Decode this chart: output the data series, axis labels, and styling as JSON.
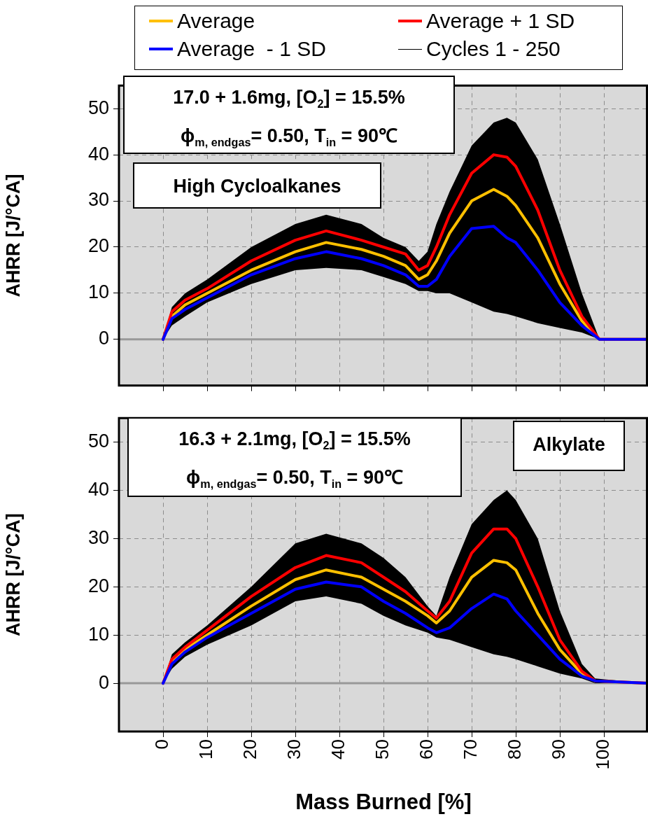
{
  "chart_data": [
    {
      "type": "line",
      "ylabel": "AHRR [J/°CA]",
      "legend": "top",
      "grid": true,
      "tick_labels": "y",
      "marker": "none",
      "line_style": "solid",
      "annotations": [
        "17.0 + 1.6mg, [O$_{2}$] = 15.5%",
        "ϕ$_{m, endgas}$= 0.50, T$_{in}$ = 90℃",
        "High Cycloalkanes"
      ],
      "x": [
        0,
        2,
        5,
        10,
        20,
        30,
        37,
        45,
        50,
        55,
        58,
        60,
        62,
        65,
        70,
        75,
        78,
        80,
        85,
        90,
        95,
        99,
        110
      ],
      "xlim": [
        -10,
        110
      ],
      "xticks": [
        0,
        10,
        20,
        30,
        40,
        50,
        60,
        70,
        80,
        90,
        100
      ],
      "ylim": [
        -10,
        55
      ],
      "yticks": [
        0,
        10,
        20,
        30,
        40,
        50
      ],
      "ref_lines": [
        {
          "axis": "y",
          "value": 0,
          "color": "#999999"
        }
      ],
      "series": [
        {
          "name": "Average",
          "color": "#ffc000",
          "values": [
            0,
            5,
            7.5,
            10,
            15,
            19,
            21,
            19.5,
            18,
            16,
            13,
            14,
            17,
            23,
            30,
            32.5,
            31,
            29,
            22,
            12,
            4,
            0,
            0
          ]
        },
        {
          "name": "Average + 1 SD",
          "color": "#ff0000",
          "values": [
            0,
            6,
            8.5,
            11,
            17,
            21.5,
            23.5,
            21.5,
            20,
            18.5,
            15,
            16,
            20,
            27,
            36,
            40,
            39.5,
            37.5,
            28,
            15,
            5,
            0,
            0
          ]
        },
        {
          "name": "Average  - 1 SD",
          "color": "#0000ff",
          "values": [
            0,
            4.5,
            6.5,
            9,
            14,
            17.5,
            19,
            17.5,
            16,
            14,
            11.5,
            11.5,
            13,
            18,
            24,
            24.5,
            22,
            21,
            15,
            8,
            3,
            0,
            0
          ]
        },
        {
          "name": "Cycles 1 - 250",
          "color": "#000000",
          "values": [
            null,
            null,
            null,
            null,
            null,
            null,
            null,
            null,
            null,
            null,
            null,
            null,
            null,
            null,
            null,
            null,
            null,
            null,
            null,
            null,
            null,
            null,
            null
          ],
          "upper": [
            0,
            7,
            10,
            13,
            20,
            25,
            27,
            25,
            22,
            20,
            17,
            19,
            25,
            32,
            42,
            47,
            48,
            47,
            39,
            25,
            10,
            0,
            0
          ],
          "lower": [
            0,
            3,
            5,
            8,
            12,
            15,
            15.5,
            15,
            13.5,
            12,
            10.5,
            10.5,
            10,
            10,
            8,
            6,
            5.5,
            5,
            3.5,
            2.5,
            1.5,
            0,
            0
          ]
        }
      ]
    },
    {
      "type": "line",
      "ylabel": "AHRR [J/°CA]",
      "xlabel": "Mass Burned [%]",
      "grid": true,
      "marker": "none",
      "line_style": "solid",
      "annotations": [
        "16.3 + 2.1mg, [O$_{2}$] = 15.5%",
        "ϕ$_{m, endgas}$= 0.50, T$_{in}$ = 90℃",
        "Alkylate"
      ],
      "x": [
        0,
        2,
        5,
        10,
        20,
        30,
        37,
        45,
        50,
        55,
        60,
        62,
        65,
        70,
        75,
        78,
        80,
        85,
        90,
        95,
        98,
        110
      ],
      "xlim": [
        -10,
        110
      ],
      "xticks": [
        0,
        10,
        20,
        30,
        40,
        50,
        60,
        70,
        80,
        90,
        100
      ],
      "ylim": [
        -10,
        55
      ],
      "yticks": [
        0,
        10,
        20,
        30,
        40,
        50
      ],
      "ref_lines": [
        {
          "axis": "y",
          "value": 0,
          "color": "#999999"
        }
      ],
      "series": [
        {
          "color": "#ffc000",
          "values": [
            0,
            4.5,
            7,
            10,
            16,
            21.5,
            23.5,
            22,
            19.5,
            17,
            14,
            12.5,
            15,
            22,
            25.5,
            25,
            23.5,
            14.5,
            7,
            2,
            0.5,
            0
          ]
        },
        {
          "color": "#ff0000",
          "values": [
            0,
            5,
            7.5,
            11,
            18,
            24,
            26.5,
            25,
            22,
            19,
            15,
            13.5,
            17,
            27,
            32,
            32,
            30,
            20,
            9,
            2.5,
            0.5,
            0
          ]
        },
        {
          "color": "#0000ff",
          "values": [
            0,
            4,
            6.5,
            9.5,
            14.5,
            19.5,
            21,
            20,
            17,
            14.5,
            11.5,
            10.5,
            11.5,
            15.5,
            18.5,
            17.5,
            15,
            10,
            5,
            1.5,
            0.5,
            0
          ]
        },
        {
          "color": "#000000",
          "values": [
            null,
            null,
            null,
            null,
            null,
            null,
            null,
            null,
            null,
            null,
            null,
            null,
            null,
            null,
            null,
            null,
            null,
            null,
            null,
            null,
            null,
            null
          ],
          "upper": [
            0,
            6,
            8.5,
            12,
            20,
            29,
            31,
            29,
            26,
            22,
            16,
            14,
            22,
            33,
            38,
            40,
            38,
            30,
            15,
            4,
            1,
            0
          ],
          "lower": [
            0,
            3,
            5.5,
            8,
            12,
            17,
            18,
            16.5,
            14,
            12,
            10.5,
            9.5,
            9,
            7.5,
            6,
            5.5,
            5,
            3.5,
            2,
            1,
            0,
            0
          ]
        }
      ]
    }
  ]
}
